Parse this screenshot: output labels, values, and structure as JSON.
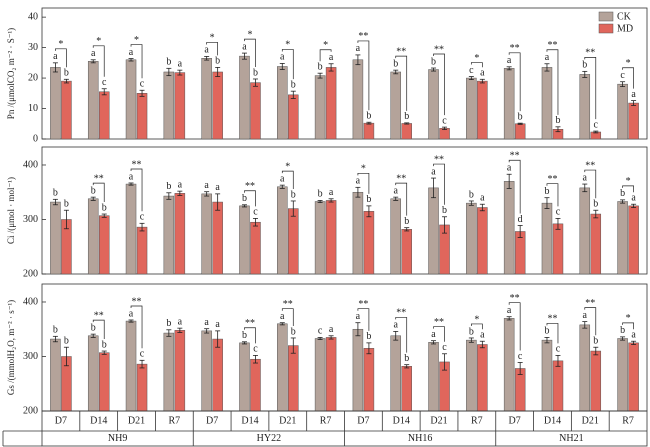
{
  "chart_data": [
    {
      "type": "bar",
      "ylabel": "Pn /(μmolCO₂ m⁻² · S⁻¹)",
      "ylim": [
        0,
        43
      ],
      "yticks": [
        0,
        10,
        20,
        30,
        40
      ],
      "legend": "upper right",
      "series": [
        {
          "name": "CK",
          "color": "#b4a39a",
          "values": [
            23.5,
            25.5,
            26,
            22,
            26.5,
            27.2,
            23.8,
            20.8,
            26,
            22,
            22.8,
            20,
            23.2,
            23.5,
            21.2,
            18
          ],
          "errors": [
            1.5,
            0.5,
            0.4,
            1.2,
            0.6,
            1,
            1,
            0.8,
            1.6,
            0.6,
            0.5,
            0.5,
            0.5,
            1.2,
            1,
            0.8
          ],
          "letters": [
            "a",
            "a",
            "a",
            "b",
            "a",
            "a",
            "a",
            "b",
            "a",
            "b",
            "b",
            "c",
            "a",
            "a",
            "b",
            "c"
          ]
        },
        {
          "name": "MD",
          "color": "#e0665c",
          "values": [
            19,
            15.5,
            15,
            21.8,
            22,
            18.5,
            14.5,
            23.5,
            5.2,
            5.1,
            3.5,
            19,
            5,
            3.2,
            2.3,
            11.8
          ],
          "errors": [
            0.6,
            1,
            1,
            0.8,
            1.5,
            1.2,
            1.2,
            1.2,
            0.3,
            0.2,
            0.4,
            0.6,
            0.2,
            0.8,
            0.3,
            0.8
          ],
          "letters": [
            "b",
            "c",
            "c",
            "a",
            "b",
            "b",
            "b",
            "a",
            "b",
            "b",
            "c",
            "a",
            "b",
            "b",
            "c",
            "a"
          ]
        }
      ],
      "significance": [
        "*",
        "*",
        "*",
        null,
        "*",
        "*",
        "*",
        "*",
        "**",
        "**",
        "**",
        "*",
        "**",
        "**",
        "**",
        "*"
      ]
    },
    {
      "type": "bar",
      "ylabel": "Ci /(μmol · mol⁻¹)",
      "ylim": [
        200,
        433
      ],
      "yticks": [
        200,
        300,
        400
      ],
      "series": [
        {
          "color": "#b4a39a",
          "values": [
            332,
            338,
            365,
            343,
            347,
            325,
            360,
            333,
            350,
            338,
            358,
            330,
            370,
            330,
            358,
            333
          ],
          "errors": [
            5,
            3,
            2,
            6,
            4,
            2,
            3,
            2,
            9,
            3,
            18,
            4,
            13,
            10,
            7,
            3
          ],
          "letters": [
            "b",
            "b",
            "a",
            "b",
            "a",
            "b",
            "a",
            "b",
            "a",
            "a",
            "a",
            "b",
            "a",
            "b",
            "a",
            "b"
          ]
        },
        {
          "color": "#e0665c",
          "values": [
            300,
            307,
            286,
            348,
            332,
            295,
            320,
            335,
            315,
            282,
            290,
            322,
            278,
            292,
            310,
            325
          ],
          "errors": [
            17,
            3,
            7,
            4,
            15,
            7,
            14,
            3,
            10,
            3,
            15,
            6,
            11,
            10,
            7,
            3
          ],
          "letters": [
            "b",
            "b",
            "c",
            "a",
            "a",
            "c",
            "b",
            "a",
            "b",
            "b",
            "b",
            "a",
            "d",
            "c",
            "b",
            "a"
          ]
        }
      ],
      "significance": [
        null,
        "**",
        "**",
        null,
        null,
        "**",
        "*",
        null,
        "*",
        "**",
        "**",
        null,
        "**",
        "**",
        "**",
        "*"
      ]
    },
    {
      "type": "bar",
      "ylabel": "Gs /(mmolH₂O, m⁻² · s⁻¹)",
      "ylim": [
        200,
        433
      ],
      "yticks": [
        200,
        300,
        400
      ],
      "series": [
        {
          "color": "#b4a39a",
          "values": [
            332,
            338,
            365,
            343,
            347,
            325,
            360,
            333,
            350,
            338,
            326,
            330,
            370,
            330,
            358,
            333
          ],
          "errors": [
            5,
            3,
            2,
            6,
            4,
            2,
            2,
            2,
            12,
            8,
            3,
            4,
            3,
            5,
            6,
            3
          ],
          "letters": [
            "b",
            "b",
            "a",
            "b",
            "a",
            "b",
            "a",
            "c",
            "a",
            "a",
            "a",
            "b",
            "a",
            "b",
            "a",
            "b"
          ]
        },
        {
          "color": "#e0665c",
          "values": [
            300,
            307,
            286,
            348,
            332,
            295,
            320,
            335,
            315,
            282,
            290,
            322,
            278,
            292,
            310,
            325
          ],
          "errors": [
            17,
            3,
            7,
            4,
            15,
            7,
            14,
            3,
            10,
            3,
            15,
            6,
            11,
            10,
            7,
            3
          ],
          "letters": [
            "b",
            "b",
            "c",
            "a",
            "a",
            "c",
            "b",
            "a",
            "b",
            "b",
            "c",
            "a",
            "c",
            "c",
            "b",
            "a"
          ]
        }
      ],
      "significance": [
        null,
        "**",
        "**",
        null,
        null,
        "**",
        "**",
        null,
        "**",
        "**",
        "**",
        "*",
        "**",
        "**",
        "**",
        "*"
      ]
    }
  ],
  "x_axis": {
    "categories": [
      "D7",
      "D14",
      "D21",
      "R7",
      "D7",
      "D14",
      "D21",
      "R7",
      "D7",
      "D14",
      "D21",
      "R7",
      "D7",
      "D14",
      "D21",
      "R7"
    ],
    "groups": [
      "NH9",
      "HY22",
      "NH16",
      "NH21"
    ]
  }
}
